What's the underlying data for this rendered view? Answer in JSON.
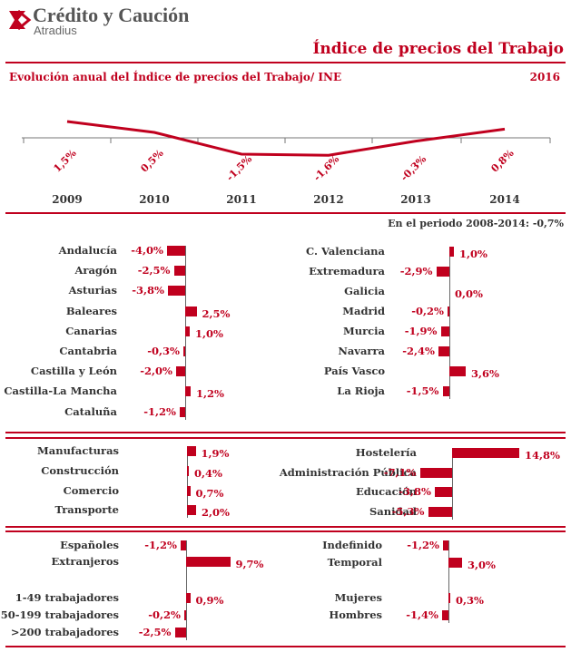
{
  "header": {
    "brand": "Crédito y Caución",
    "brand_sub": "Atradius",
    "title": "Índice de precios del Trabajo",
    "subtitle": "Evolución anual del Índice de precios del Trabajo/ INE",
    "year": "2016",
    "period_note": "En el periodo 2008-2014: -0,7%"
  },
  "colors": {
    "accent": "#c0001e",
    "text": "#333333"
  },
  "chart_data": [
    {
      "type": "line",
      "title": "Evolución anual del Índice de precios del Trabajo/ INE",
      "x": [
        "2009",
        "2010",
        "2011",
        "2012",
        "2013",
        "2014"
      ],
      "values": [
        1.5,
        0.5,
        -1.5,
        -1.6,
        -0.3,
        0.8
      ],
      "labels": [
        "1,5%",
        "0,5%",
        "-1,5%",
        "-1,6%",
        "-0,3%",
        "0,8%"
      ]
    },
    {
      "type": "bar",
      "group": "regions-left",
      "categories": [
        "Andalucía",
        "Aragón",
        "Asturias",
        "Baleares",
        "Canarias",
        "Cantabria",
        "Castilla y León",
        "Castilla-La Mancha",
        "Cataluña"
      ],
      "values": [
        -4.0,
        -2.5,
        -3.8,
        2.5,
        1.0,
        -0.3,
        -2.0,
        1.2,
        -1.2
      ],
      "labels": [
        "-4,0%",
        "-2,5%",
        "-3,8%",
        "2,5%",
        "1,0%",
        "-0,3%",
        "-2,0%",
        "1,2%",
        "-1,2%"
      ]
    },
    {
      "type": "bar",
      "group": "regions-right",
      "categories": [
        "C. Valenciana",
        "Extremadura",
        "Galicia",
        "Madrid",
        "Murcia",
        "Navarra",
        "País Vasco",
        "La Rioja"
      ],
      "values": [
        1.0,
        -2.9,
        0.0,
        -0.2,
        -1.9,
        -2.4,
        3.6,
        -1.5
      ],
      "labels": [
        "1,0%",
        "-2,9%",
        "0,0%",
        "-0,2%",
        "-1,9%",
        "-2,4%",
        "3,6%",
        "-1,5%"
      ]
    },
    {
      "type": "bar",
      "group": "sectors-left",
      "categories": [
        "Manufacturas",
        "Construcción",
        "Comercio",
        "Transporte"
      ],
      "values": [
        1.9,
        0.4,
        0.7,
        2.0
      ],
      "labels": [
        "1,9%",
        "0,4%",
        "0,7%",
        "2,0%"
      ]
    },
    {
      "type": "bar",
      "group": "sectors-right",
      "categories": [
        "Hostelería",
        "Administración Pública",
        "Educación",
        "Sanidad"
      ],
      "values": [
        14.8,
        -7.1,
        -3.8,
        -5.3
      ],
      "labels": [
        "14,8%",
        "-7,1%",
        "-3,8%",
        "-5,3%"
      ]
    },
    {
      "type": "bar",
      "group": "workers-left",
      "categories": [
        "Españoles",
        "Extranjeros",
        "1-49 trabajadores",
        "50-199 trabajadores",
        ">200 trabajadores"
      ],
      "values": [
        -1.2,
        9.7,
        0.9,
        -0.2,
        -2.5
      ],
      "labels": [
        "-1,2%",
        "9,7%",
        "0,9%",
        "-0,2%",
        "-2,5%"
      ]
    },
    {
      "type": "bar",
      "group": "workers-right",
      "categories": [
        "Indefinido",
        "Temporal",
        "Mujeres",
        "Hombres"
      ],
      "values": [
        -1.2,
        3.0,
        0.3,
        -1.4
      ],
      "labels": [
        "-1,2%",
        "3,0%",
        "0,3%",
        "-1,4%"
      ]
    }
  ]
}
